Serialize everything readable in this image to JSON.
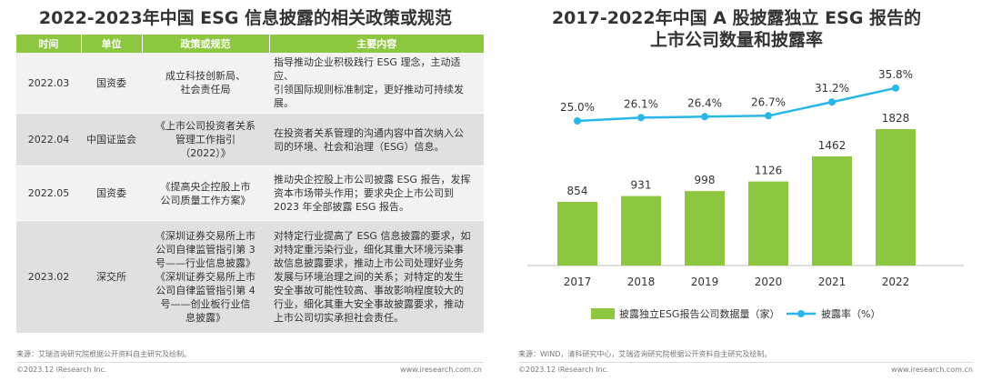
{
  "left": {
    "title": "2022-2023年中国 ESG 信息披露的相关政策或规范",
    "table": {
      "headers": [
        "时间",
        "单位",
        "政策或规范",
        "主要内容"
      ],
      "rows": [
        {
          "time": "2022.03",
          "unit": "国资委",
          "policy": "成立科技创新局、\n社会责任局",
          "content": "指导推动企业积极践行 ESG 理念，主动适应、\n引领国际规则标准制定，更好推动可持续发\n展。"
        },
        {
          "time": "2022.04",
          "unit": "中国证监会",
          "policy": "《上市公司投资者关系\n管理工作指引\n（2022）》",
          "content": "在投资者关系管理的沟通内容中首次纳入公\n司的环境、社会和治理（ESG）信息。"
        },
        {
          "time": "2022.05",
          "unit": "国资委",
          "policy": "《提高央企控股上市\n公司质量工作方案》",
          "content": "推动央企控股上市公司披露 ESG 报告，发挥\n资本市场带头作用；要求央企上市公司到\n2023 年全部披露 ESG 报告。"
        },
        {
          "time": "2023.02",
          "unit": "深交所",
          "policy": "《深圳证券交易所上市\n公司自律监管指引第 3\n号——行业信息披露》\n《深圳证券交易所上市\n公司自律监管指引第 4\n号——创业板行业信\n息披露》",
          "content": "对特定行业提高了 ESG 信息披露的要求，如\n对特定重污染行业，细化其重大环境污染事\n故信息披露要求，推动上市公司处理好业务\n发展与环境治理之间的关系；对特定的发生\n安全事故可能性较高、事故影响程度较大的\n行业，细化其重大安全事故披露要求，推动\n上市公司切实承担社会责任。"
        }
      ]
    },
    "source": "来源：艾瑞咨询研究院根据公开资料自主研究及绘制。",
    "copyright": "©2023.12 iResearch Inc.",
    "website": "www.iresearch.com.cn"
  },
  "right": {
    "title_line1": "2017-2022年中国 A 股披露独立 ESG 报告的",
    "title_line2": "上市公司数量和披露率",
    "source": "来源：WIND，清科研究中心，艾瑞咨询研究院根据公开资料自主研究及绘制。",
    "copyright": "©2023.12 iResearch Inc.",
    "website": "www.iresearch.com.cn"
  },
  "chart_data": {
    "type": "bar",
    "categories": [
      "2017",
      "2018",
      "2019",
      "2020",
      "2021",
      "2022"
    ],
    "series": [
      {
        "name": "披露独立ESG报告公司数据量（家）",
        "type": "bar",
        "values": [
          854,
          931,
          998,
          1126,
          1462,
          1828
        ],
        "labels": [
          "854",
          "931",
          "998",
          "1126",
          "1462",
          "1828"
        ],
        "color": "#8dc63f"
      },
      {
        "name": "披露率（%）",
        "type": "line",
        "values": [
          25.0,
          26.1,
          26.4,
          26.7,
          31.2,
          35.8
        ],
        "labels": [
          "25.0%",
          "26.1%",
          "26.4%",
          "26.7%",
          "31.2%",
          "35.8%"
        ],
        "color": "#29b6e8"
      }
    ],
    "legend": "bottom"
  }
}
